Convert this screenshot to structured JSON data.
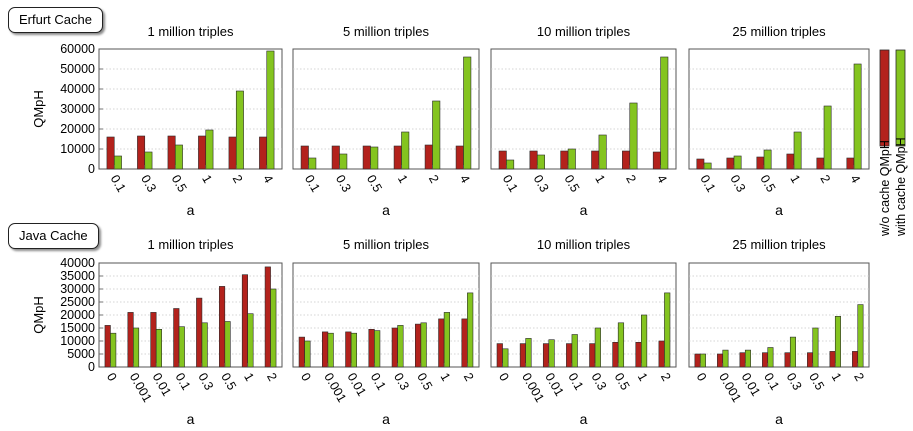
{
  "legend": {
    "without_cache": "w/o cache QMpH",
    "with_cache": "with cache QMpH"
  },
  "colors": {
    "without_cache": "#b3221c",
    "with_cache": "#84c41f",
    "bar_edge": "#2a2a2a",
    "grid": "#c8c8c8",
    "axis": "#555555"
  },
  "groups": [
    {
      "label": "Erfurt Cache"
    },
    {
      "label": "Java Cache"
    }
  ],
  "chart_data": [
    {
      "group": 0,
      "type": "bar",
      "title": "1 million triples",
      "xlabel": "a",
      "ylabel": "QMpH",
      "categories": [
        "0.1",
        "0.3",
        "0.5",
        "1",
        "2",
        "4"
      ],
      "yticks": [
        "0",
        "10000",
        "20000",
        "30000",
        "40000",
        "50000",
        "60000"
      ],
      "ylim": [
        0,
        60000
      ],
      "series": [
        {
          "name": "w/o cache QMpH",
          "values": [
            16000,
            16500,
            16500,
            16500,
            16000,
            16000
          ]
        },
        {
          "name": "with cache QMpH",
          "values": [
            6500,
            8500,
            12000,
            19500,
            39000,
            59000
          ]
        }
      ]
    },
    {
      "group": 0,
      "type": "bar",
      "title": "5 million triples",
      "xlabel": "a",
      "ylabel": "",
      "categories": [
        "0.1",
        "0.3",
        "0.5",
        "1",
        "2",
        "4"
      ],
      "yticks": [],
      "ylim": [
        0,
        60000
      ],
      "series": [
        {
          "name": "w/o cache QMpH",
          "values": [
            11500,
            11500,
            11500,
            11500,
            12000,
            11500
          ]
        },
        {
          "name": "with cache QMpH",
          "values": [
            5500,
            7500,
            11000,
            18500,
            34000,
            56000
          ]
        }
      ]
    },
    {
      "group": 0,
      "type": "bar",
      "title": "10 million triples",
      "xlabel": "a",
      "ylabel": "",
      "categories": [
        "0.1",
        "0.3",
        "0.5",
        "1",
        "2",
        "4"
      ],
      "yticks": [],
      "ylim": [
        0,
        60000
      ],
      "series": [
        {
          "name": "w/o cache QMpH",
          "values": [
            9000,
            9000,
            9000,
            9000,
            9000,
            8500
          ]
        },
        {
          "name": "with cache QMpH",
          "values": [
            4500,
            7000,
            10000,
            17000,
            33000,
            56000
          ]
        }
      ]
    },
    {
      "group": 0,
      "type": "bar",
      "title": "25 million triples",
      "xlabel": "a",
      "ylabel": "",
      "categories": [
        "0.1",
        "0.3",
        "0.5",
        "1",
        "2",
        "4"
      ],
      "yticks": [],
      "ylim": [
        0,
        60000
      ],
      "series": [
        {
          "name": "w/o cache QMpH",
          "values": [
            5000,
            5500,
            6000,
            7500,
            5500,
            5500
          ]
        },
        {
          "name": "with cache QMpH",
          "values": [
            3000,
            6500,
            9500,
            18500,
            31500,
            52500
          ]
        }
      ]
    },
    {
      "group": 1,
      "type": "bar",
      "title": "1 million triples",
      "xlabel": "a",
      "ylabel": "QMpH",
      "categories": [
        "0",
        "0.001",
        "0.01",
        "0.1",
        "0.3",
        "0.5",
        "1",
        "2"
      ],
      "yticks": [
        "0",
        "5000",
        "10000",
        "15000",
        "20000",
        "25000",
        "30000",
        "35000",
        "40000"
      ],
      "ylim": [
        0,
        40000
      ],
      "series": [
        {
          "name": "w/o cache QMpH",
          "values": [
            16000,
            21000,
            21000,
            22500,
            26500,
            31000,
            35500,
            38500
          ]
        },
        {
          "name": "with cache QMpH",
          "values": [
            13000,
            15000,
            14500,
            15500,
            17000,
            17500,
            20500,
            30000
          ]
        }
      ]
    },
    {
      "group": 1,
      "type": "bar",
      "title": "5 million triples",
      "xlabel": "a",
      "ylabel": "",
      "categories": [
        "0",
        "0.001",
        "0.01",
        "0.1",
        "0.3",
        "0.5",
        "1",
        "2"
      ],
      "yticks": [],
      "ylim": [
        0,
        40000
      ],
      "series": [
        {
          "name": "w/o cache QMpH",
          "values": [
            11500,
            13500,
            13500,
            14500,
            15000,
            16500,
            18500,
            18500
          ]
        },
        {
          "name": "with cache QMpH",
          "values": [
            10000,
            13000,
            13000,
            14000,
            16000,
            17000,
            21000,
            28500
          ]
        }
      ]
    },
    {
      "group": 1,
      "type": "bar",
      "title": "10 million triples",
      "xlabel": "a",
      "ylabel": "",
      "categories": [
        "0",
        "0.001",
        "0.01",
        "0.1",
        "0.3",
        "0.5",
        "1",
        "2"
      ],
      "yticks": [],
      "ylim": [
        0,
        40000
      ],
      "series": [
        {
          "name": "w/o cache QMpH",
          "values": [
            9000,
            9000,
            9000,
            9000,
            9000,
            9500,
            9500,
            10000
          ]
        },
        {
          "name": "with cache QMpH",
          "values": [
            7000,
            11000,
            10500,
            12500,
            15000,
            17000,
            20000,
            28500
          ]
        }
      ]
    },
    {
      "group": 1,
      "type": "bar",
      "title": "25 million triples",
      "xlabel": "a",
      "ylabel": "",
      "categories": [
        "0",
        "0.001",
        "0.01",
        "0.1",
        "0.3",
        "0.5",
        "1",
        "2"
      ],
      "yticks": [],
      "ylim": [
        0,
        40000
      ],
      "series": [
        {
          "name": "w/o cache QMpH",
          "values": [
            5000,
            5000,
            5500,
            5500,
            5500,
            5500,
            6000,
            6000
          ]
        },
        {
          "name": "with cache QMpH",
          "values": [
            5000,
            6500,
            6500,
            7500,
            11500,
            15000,
            19500,
            24000
          ]
        }
      ]
    }
  ]
}
